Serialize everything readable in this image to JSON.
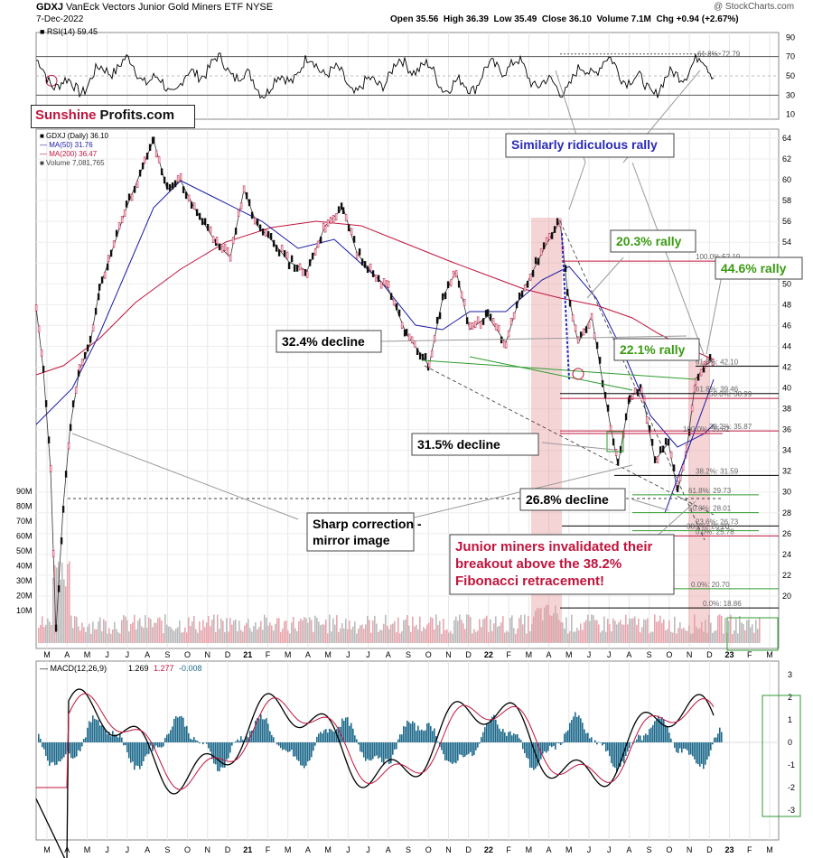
{
  "header": {
    "symbol": "GDXJ",
    "name": "VanEck Vectors Junior Gold Miners ETF",
    "exchange": "NYSE",
    "date": "7-Dec-2022",
    "copyright": "@ StockCharts.com",
    "quote": {
      "open": "Open 35.56",
      "high": "High 36.39",
      "low": "Low 35.49",
      "close": "Close 36.10",
      "volume": "Volume 7.1M",
      "change": "Chg +0.94 (+2.67%)"
    }
  },
  "logo": {
    "red": "Sunshine",
    "black": "Profits.com"
  },
  "rsi": {
    "label": "RSI(14) 59.45",
    "ticks": [
      "90",
      "70",
      "50",
      "30",
      "10"
    ],
    "fib_label": "61.8%: 72.79"
  },
  "price_legend": {
    "l1": "GDXJ (Daily) 36.10",
    "l2": "MA(50) 31.76",
    "l3": "MA(200) 36.47",
    "l4": "Volume 7,081,765"
  },
  "volume_ticks": [
    "90M",
    "80M",
    "70M",
    "60M",
    "50M",
    "40M",
    "30M",
    "20M",
    "10M"
  ],
  "fib_labels": {
    "f1000": "100.0%:52.19",
    "f618a": "61.8%: 42.10",
    "f618b": "61.8%: 39.46",
    "f500": "50.0%: 38.99",
    "f382a": "38.2%: 35.87",
    "f1000b": "100.0%: 35.62",
    "f382b": "38.2%: 31.59",
    "f618c": "61.8%: 29.73",
    "f500b": "50.0%: 28.01",
    "f236": "23.6%: 26.73",
    "f382c": "38.2%: 26.28",
    "f00a": "0.0%: 25.78",
    "f00b": "0.0%: 20.70",
    "f00c": "0.0%: 18.86"
  },
  "annotations": {
    "ridiculous": "Similarly ridiculous rally",
    "rally203": "20.3% rally",
    "rally446": "44.6% rally",
    "rally221": "22.1% rally",
    "decl324": "32.4% decline",
    "decl315": "31.5% decline",
    "decl268": "26.8% decline",
    "sharp1": "Sharp correction -",
    "sharp2": "mirror image",
    "junior1": "Junior miners invalidated their",
    "junior2": "breakout above the 38.2%",
    "junior3": "Fibonacci retracement!"
  },
  "macd": {
    "label": "MACD(12,26,9)",
    "v1": "1.269",
    "v2": "1.277",
    "v3": "-0.008",
    "ticks": [
      "3",
      "2",
      "1",
      "0",
      "-1",
      "-2",
      "-3"
    ]
  },
  "x_labels": [
    "M",
    "A",
    "M",
    "J",
    "J",
    "A",
    "S",
    "O",
    "N",
    "D",
    "21",
    "F",
    "M",
    "A",
    "M",
    "J",
    "J",
    "A",
    "S",
    "O",
    "N",
    "D",
    "22",
    "F",
    "M",
    "A",
    "M",
    "J",
    "J",
    "A",
    "S",
    "O",
    "N",
    "D",
    "23",
    "F",
    "M"
  ],
  "colors": {
    "red": "#c0143c",
    "blue": "#1a1aa6",
    "green": "#2e9b2e",
    "rallygreen": "#3a9a12",
    "navy": "#2a2ab8",
    "macdhist": "#1f6a8c"
  },
  "chart_data": {
    "type": "line",
    "title": "GDXJ VanEck Vectors Junior Gold Miners ETF NYSE",
    "x": [
      "Mar20",
      "Apr20",
      "Jul20",
      "Aug20",
      "Oct20",
      "Jan21",
      "May21",
      "Jun21",
      "Sep21",
      "Nov21",
      "Jan22",
      "Mar22",
      "Apr22",
      "May22",
      "Jul22",
      "Aug22",
      "Sep22",
      "Oct22",
      "Nov22",
      "Dec22"
    ],
    "series": [
      {
        "name": "GDXJ (Daily)",
        "values": [
          21,
          33,
          62,
          58,
          53,
          50,
          53,
          52,
          37,
          40,
          40,
          45,
          52,
          40,
          29,
          33,
          27,
          26,
          32,
          36.1
        ]
      },
      {
        "name": "MA(50)",
        "values": [
          30,
          32,
          50,
          56,
          52,
          46,
          47,
          50,
          40,
          38,
          38,
          40,
          46,
          44,
          34,
          32,
          29,
          28,
          29,
          31.76
        ]
      },
      {
        "name": "MA(200)",
        "values": [
          36,
          35,
          40,
          46,
          49,
          50,
          48,
          47,
          44,
          41,
          40,
          41,
          42,
          43,
          41,
          39,
          37,
          35,
          34,
          36.47
        ]
      }
    ],
    "ylim": [
      18,
      64
    ]
  }
}
